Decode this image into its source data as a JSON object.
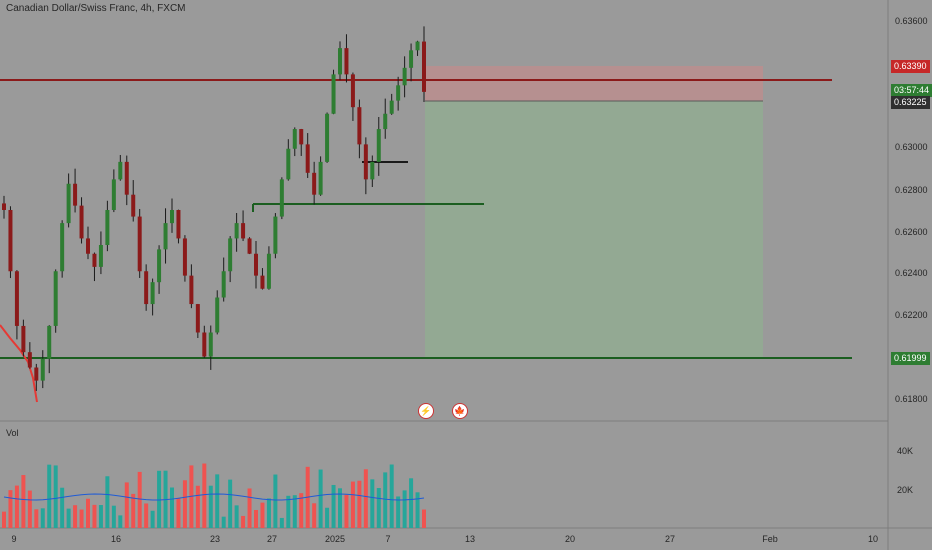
{
  "header": {
    "title": "Canadian Dollar/Swiss Franc, 4h, FXCM"
  },
  "volume_pane": {
    "label": "Vol",
    "axis_labels": [
      "40K",
      "20K"
    ]
  },
  "events": {
    "bolt": "⚡",
    "flag": "🍁"
  },
  "price_badges": {
    "stop": "0.63390",
    "timer": "03:57:44",
    "current": "0.63225",
    "target": "0.61999"
  },
  "colors": {
    "bg": "#9a9a9a",
    "up": "#2e7d32",
    "down": "#8b1a1a",
    "stop_zone": "#c98a8a",
    "target_zone": "#8fb08f",
    "resistance": "#8b1a1a",
    "support": "#1b5e20",
    "ma": "#e53935"
  },
  "chart_data": {
    "type": "candlestick",
    "title": "Canadian Dollar/Swiss Franc, 4h, FXCM",
    "y_ticks": [
      "0.63600",
      "0.63000",
      "0.62800",
      "0.62600",
      "0.62400",
      "0.62200",
      "0.61800"
    ],
    "ylim": [
      0.6172,
      0.6364
    ],
    "x_ticks": [
      "9",
      "16",
      "23",
      "27",
      "2025",
      "7",
      "13",
      "20",
      "27",
      "Feb",
      "10"
    ],
    "levels": {
      "resistance": 0.6339,
      "support": 0.61999,
      "mid_support": 0.6274
    },
    "position": {
      "entry": 0.63225,
      "stop": 0.6339,
      "target": 0.61999
    },
    "close_path": [
      0.6268,
      0.624,
      0.6215,
      0.6203,
      0.6196,
      0.619,
      0.62,
      0.6215,
      0.624,
      0.6262,
      0.628,
      0.627,
      0.6255,
      0.6248,
      0.6242,
      0.6252,
      0.6268,
      0.6282,
      0.629,
      0.6275,
      0.6265,
      0.624,
      0.6225,
      0.6235,
      0.625,
      0.6262,
      0.6268,
      0.6255,
      0.6238,
      0.6225,
      0.6212,
      0.6201,
      0.6212,
      0.6228,
      0.624,
      0.6255,
      0.6262,
      0.6255,
      0.6248,
      0.6238,
      0.6232,
      0.6248,
      0.6265,
      0.6282,
      0.6296,
      0.6305,
      0.6298,
      0.6285,
      0.6275,
      0.629,
      0.6312,
      0.633,
      0.6342,
      0.633,
      0.6315,
      0.6298,
      0.6282,
      0.629,
      0.6305,
      0.6312,
      0.6318,
      0.6325,
      0.6333,
      0.6341,
      0.6345,
      0.6322
    ]
  }
}
